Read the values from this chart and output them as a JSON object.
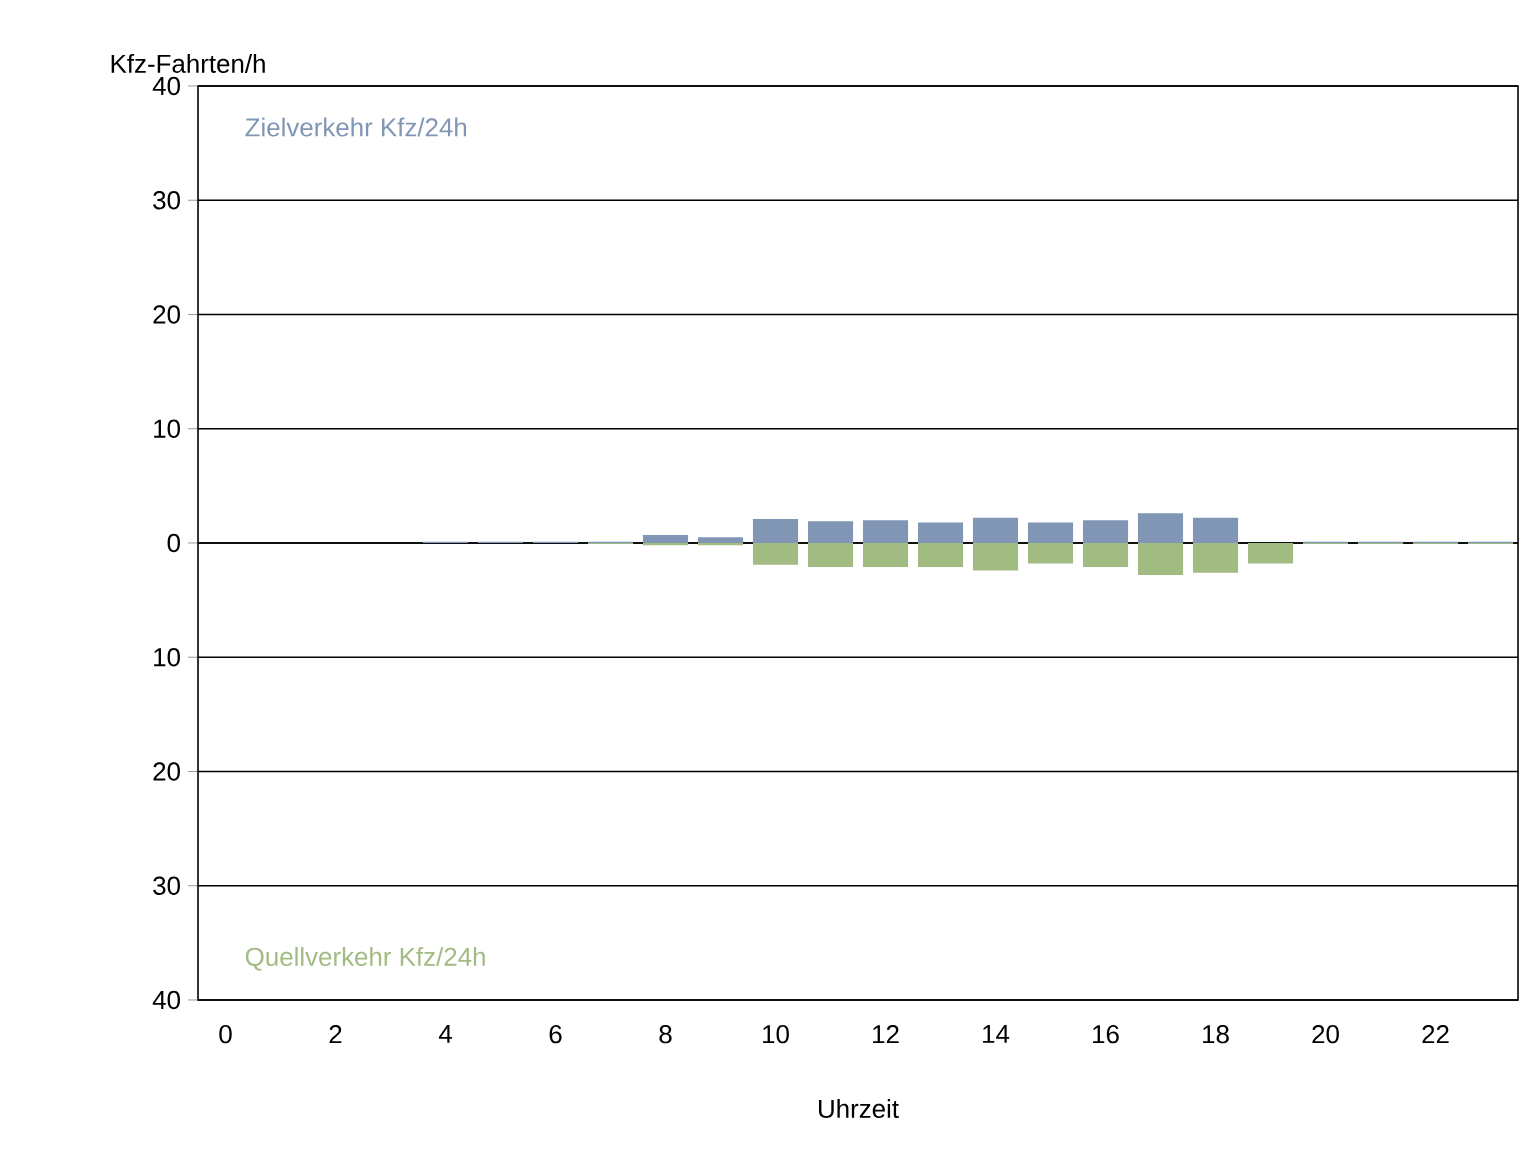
{
  "chart_data": {
    "type": "bar",
    "ylabel": "Kfz-Fahrten/h",
    "xlabel": "Uhrzeit",
    "categories": [
      "0",
      null,
      "2",
      null,
      "4",
      null,
      "6",
      null,
      "8",
      null,
      "10",
      null,
      "12",
      null,
      "14",
      null,
      "16",
      null,
      "18",
      null,
      "20",
      null,
      "22",
      null
    ],
    "series": [
      {
        "name": "Zielverkehr Kfz/24h",
        "color": "#8096b4",
        "values": [
          0,
          0,
          0,
          0,
          0.1,
          0.1,
          0.1,
          0.1,
          0.7,
          0.5,
          2.1,
          1.9,
          2.0,
          1.8,
          2.2,
          1.8,
          2.0,
          2.6,
          2.2,
          0,
          0.1,
          0.1,
          0.1,
          0.1
        ]
      },
      {
        "name": "Quellverkehr Kfz/24h",
        "color": "#a2bb82",
        "values": [
          0,
          0,
          0,
          0,
          0,
          0,
          0,
          -0.1,
          -0.2,
          -0.2,
          -1.9,
          -2.1,
          -2.1,
          -2.1,
          -2.4,
          -1.8,
          -2.1,
          -2.8,
          -2.6,
          -1.8,
          -0.1,
          -0.1,
          -0.1,
          -0.1
        ]
      }
    ],
    "ylim": [
      -40,
      40
    ],
    "yticks": [
      {
        "value": -40,
        "label": "40"
      },
      {
        "value": -30,
        "label": "30"
      },
      {
        "value": -20,
        "label": "20"
      },
      {
        "value": -10,
        "label": "10"
      },
      0,
      10,
      20,
      30,
      40
    ],
    "grid": "y"
  }
}
